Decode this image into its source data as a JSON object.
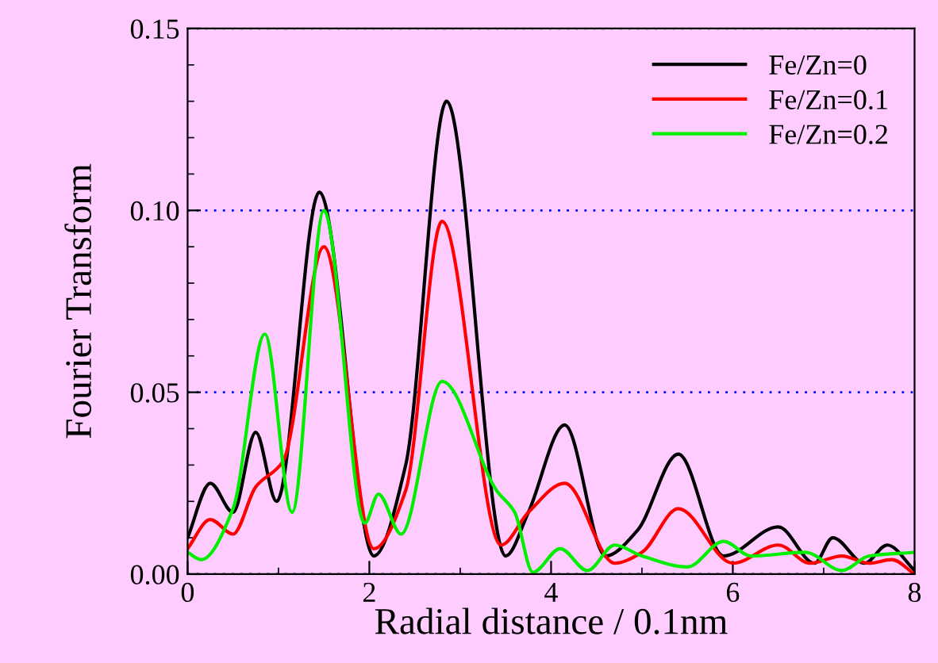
{
  "chart_data": {
    "type": "line",
    "xlabel": "Radial distance / 0.1nm",
    "ylabel": "Fourier Transform",
    "xlim": [
      0,
      8
    ],
    "xticks": [
      0,
      2,
      4,
      6,
      8
    ],
    "ylim": [
      0,
      0.15
    ],
    "yticks": [
      {
        "value": 0,
        "label": "0.00"
      },
      {
        "value": 0.05,
        "label": "0.05"
      },
      {
        "value": 0.1,
        "label": "0.10"
      },
      {
        "value": 0.15,
        "label": "0.15"
      }
    ],
    "grid": "y",
    "legend": "top right",
    "marker": "none",
    "line_style": "solid",
    "series": [
      {
        "name": "Fe/Zn=0",
        "color": "#000000",
        "x": [
          0,
          0.25,
          0.5,
          0.75,
          0.98,
          1.45,
          2.05,
          2.4,
          2.85,
          3.5,
          3.75,
          4.15,
          4.6,
          4.95,
          5.4,
          5.9,
          6.5,
          6.9,
          7.1,
          7.45,
          7.7,
          8
        ],
        "values": [
          0.01,
          0.025,
          0.017,
          0.039,
          0.02,
          0.105,
          0.005,
          0.03,
          0.13,
          0.005,
          0.017,
          0.041,
          0.005,
          0.012,
          0.033,
          0.005,
          0.013,
          0.003,
          0.01,
          0.003,
          0.008,
          0.001
        ]
      },
      {
        "name": "Fe/Zn=0.1",
        "color": "#ff0000",
        "x": [
          0,
          0.25,
          0.5,
          0.75,
          1.05,
          1.5,
          2.05,
          2.4,
          2.8,
          3.45,
          3.75,
          4.15,
          4.7,
          5.0,
          5.4,
          6.0,
          6.5,
          6.85,
          7.2,
          7.5,
          7.75,
          8
        ],
        "values": [
          0.007,
          0.015,
          0.011,
          0.024,
          0.031,
          0.09,
          0.007,
          0.023,
          0.097,
          0.008,
          0.017,
          0.025,
          0.003,
          0.006,
          0.018,
          0.003,
          0.008,
          0.003,
          0.005,
          0.003,
          0.004,
          0.0
        ]
      },
      {
        "name": "Fe/Zn=0.2",
        "color": "#00ee00",
        "x": [
          0,
          0.15,
          0.5,
          0.85,
          1.15,
          1.5,
          1.95,
          2.1,
          2.35,
          2.8,
          3.4,
          3.6,
          3.8,
          4.1,
          4.4,
          4.7,
          5.0,
          5.5,
          5.9,
          6.2,
          6.8,
          7.2,
          7.5,
          8
        ],
        "values": [
          0.006,
          0.004,
          0.018,
          0.066,
          0.017,
          0.1,
          0.014,
          0.022,
          0.011,
          0.053,
          0.023,
          0.017,
          0.0005,
          0.007,
          0.001,
          0.008,
          0.005,
          0.002,
          0.009,
          0.005,
          0.006,
          0.001,
          0.005,
          0.006
        ]
      }
    ]
  }
}
